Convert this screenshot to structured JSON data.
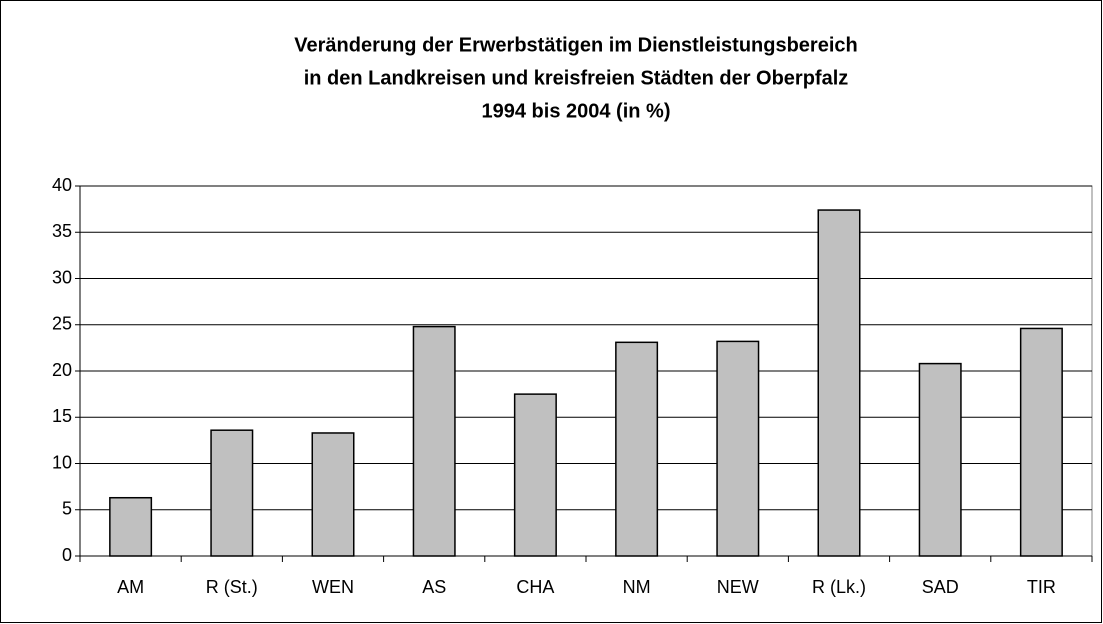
{
  "chart_data": {
    "type": "bar",
    "title": [
      "Veränderung der Erwerbstätigen im Dienstleistungsbereich",
      "in den Landkreisen und kreisfreien Städten der Oberpfalz",
      "1994 bis 2004 (in %)"
    ],
    "categories": [
      "AM",
      "R (St.)",
      "WEN",
      "AS",
      "CHA",
      "NM",
      "NEW",
      "R (Lk.)",
      "SAD",
      "TIR"
    ],
    "values": [
      6.3,
      13.6,
      13.3,
      24.8,
      17.5,
      23.1,
      23.2,
      37.4,
      20.8,
      24.6
    ],
    "color": "#c0c0c0",
    "ylim": [
      0,
      40
    ],
    "yticks": [
      0,
      5,
      10,
      15,
      20,
      25,
      30,
      35,
      40
    ],
    "grid": true
  }
}
